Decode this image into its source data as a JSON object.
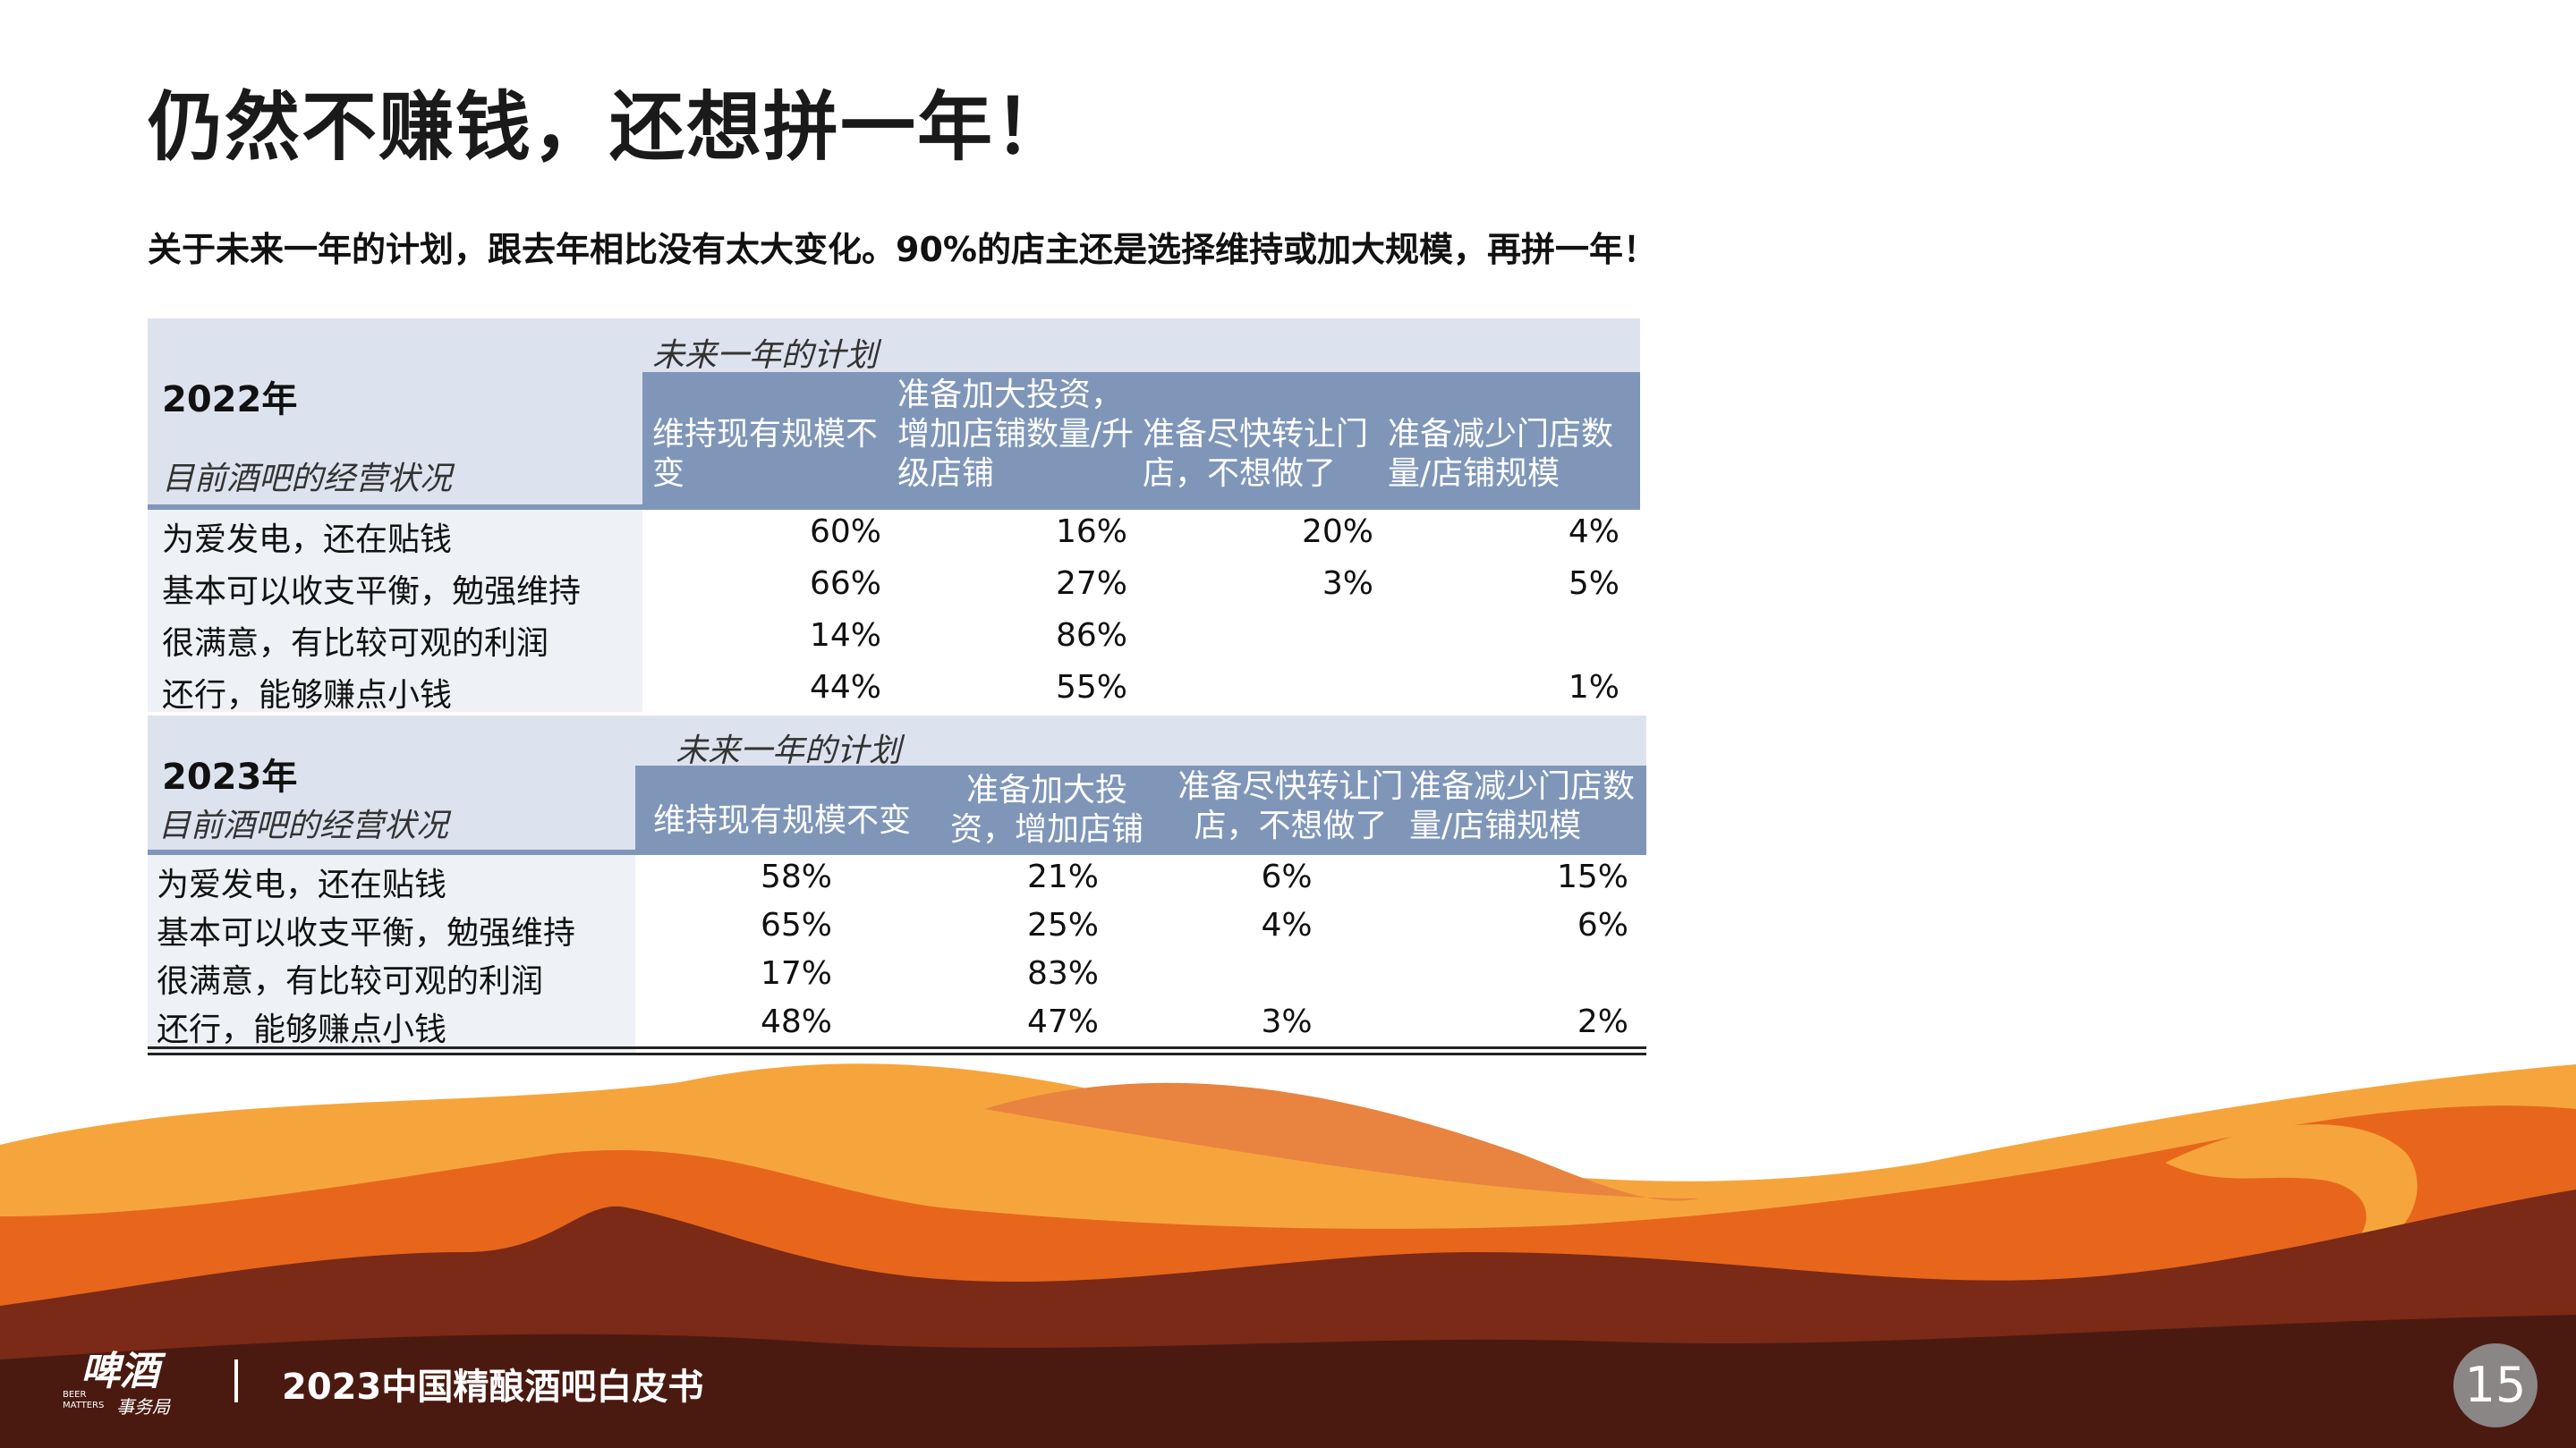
{
  "title": "仍然不赚钱，还想拼一年！",
  "subtitle": "关于未来一年的计划，跟去年相比没有太大变化。90%的店主还是选择维持或加大规模，再拼一年！",
  "table_2022": {
    "year": "2022年",
    "plan_label": "未来一年的计划",
    "status_label": "目前酒吧的经营状况",
    "columns": [
      "维持现有规模不变",
      "准备加大投资，增加店铺数量/升级店铺",
      "准备尽快转让门店，不想做了",
      "准备减少门店数量/店铺规模"
    ],
    "rows": [
      {
        "label": "为爱发电，还在贴钱",
        "values": [
          "60%",
          "16%",
          "20%",
          "4%"
        ]
      },
      {
        "label": "基本可以收支平衡，勉强维持",
        "values": [
          "66%",
          "27%",
          "3%",
          "5%"
        ]
      },
      {
        "label": "很满意，有比较可观的利润",
        "values": [
          "14%",
          "86%",
          "",
          ""
        ]
      },
      {
        "label": "还行，能够赚点小钱",
        "values": [
          "44%",
          "55%",
          "",
          "1%"
        ]
      }
    ]
  },
  "table_2023": {
    "year": "2023年",
    "plan_label": "未来一年的计划",
    "status_label": "目前酒吧的经营状况",
    "columns": [
      "维持现有规模不变",
      "准备加大投资，增加店铺数量/",
      "准备尽快转让门店，不想做了",
      "准备减少门店数量/店铺规模"
    ],
    "rows": [
      {
        "label": "为爱发电，还在贴钱",
        "values": [
          "58%",
          "21%",
          "6%",
          "15%"
        ]
      },
      {
        "label": "基本可以收支平衡，勉强维持",
        "values": [
          "65%",
          "25%",
          "4%",
          "6%"
        ]
      },
      {
        "label": "很满意，有比较可观的利润",
        "values": [
          "17%",
          "83%",
          "",
          ""
        ]
      },
      {
        "label": "还行，能够赚点小钱",
        "values": [
          "48%",
          "47%",
          "3%",
          "2%"
        ]
      }
    ]
  },
  "footer": {
    "logo_text": "啤酒事务局",
    "logo_en": "BEER MATTERS",
    "report_title": "2023中国精酿酒吧白皮书",
    "page_number": "15"
  },
  "colors": {
    "header_band": "#dde3ee",
    "column_header": "#7f96b9",
    "wave_light": "#f6a53c",
    "wave_mid": "#e8661b",
    "wave_dark": "#6b2214"
  }
}
